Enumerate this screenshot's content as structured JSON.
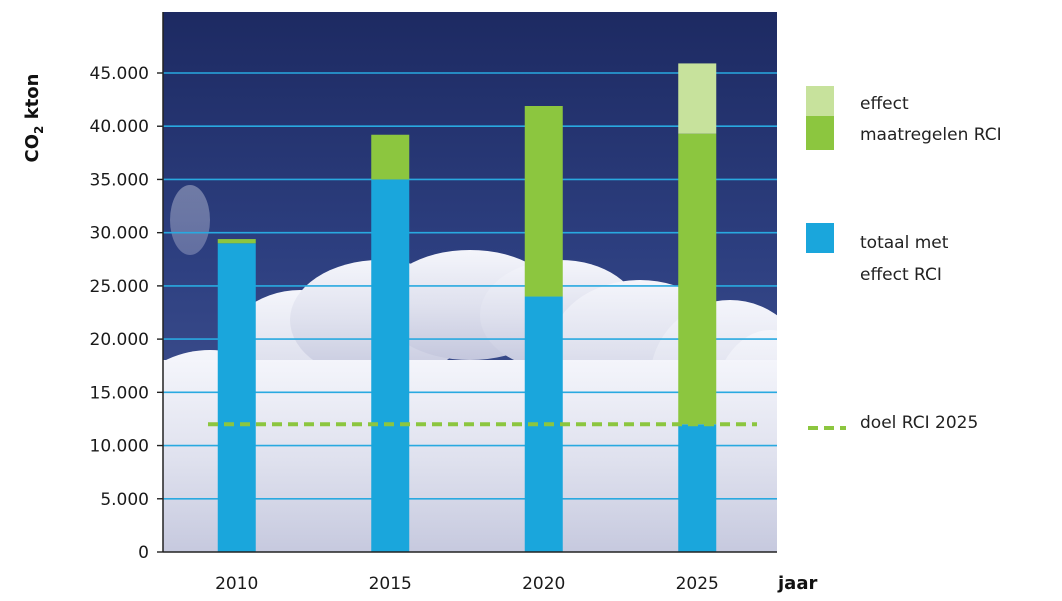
{
  "chart_data": {
    "type": "bar",
    "stacked": true,
    "categories": [
      "2010",
      "2015",
      "2020",
      "2025"
    ],
    "series": [
      {
        "name": "totaal met effect RCI",
        "color": "#1aa6dc",
        "values": [
          29000,
          35000,
          24000,
          12000
        ]
      },
      {
        "name": "maatregelen RCI",
        "color": "#8cc63f",
        "values": [
          400,
          4200,
          17900,
          27300
        ]
      },
      {
        "name": "effect",
        "color": "#c7e29c",
        "values": [
          0,
          0,
          0,
          6600
        ]
      }
    ],
    "target_line": {
      "name": "doel RCI 2025",
      "value": 12000,
      "color": "#8cc63f",
      "style": "dashed"
    },
    "ylabel_main": "CO",
    "ylabel_sub": "2",
    "ylabel_rest": " kton",
    "xlabel": "jaar",
    "ylim": [
      0,
      45000
    ],
    "yticks": [
      0,
      5000,
      10000,
      15000,
      20000,
      25000,
      30000,
      35000,
      40000,
      45000
    ],
    "ytick_labels": [
      "0",
      "5.000",
      "10.000",
      "15.000",
      "20.000",
      "25.000",
      "30.000",
      "35.000",
      "40.000",
      "45.000"
    ],
    "grid": true,
    "background": "sky-with-clouds",
    "legend": {
      "position": "right",
      "entries": [
        {
          "lines": [
            "effect",
            "maatregelen RCI"
          ],
          "colors": [
            "#c7e29c",
            "#8cc63f"
          ]
        },
        {
          "lines": [
            "totaal met",
            "effect RCI"
          ],
          "colors": [
            "#1aa6dc"
          ]
        },
        {
          "lines": [
            "doel RCI 2025"
          ],
          "colors": [
            "#8cc63f"
          ],
          "dashed": true
        }
      ]
    }
  }
}
